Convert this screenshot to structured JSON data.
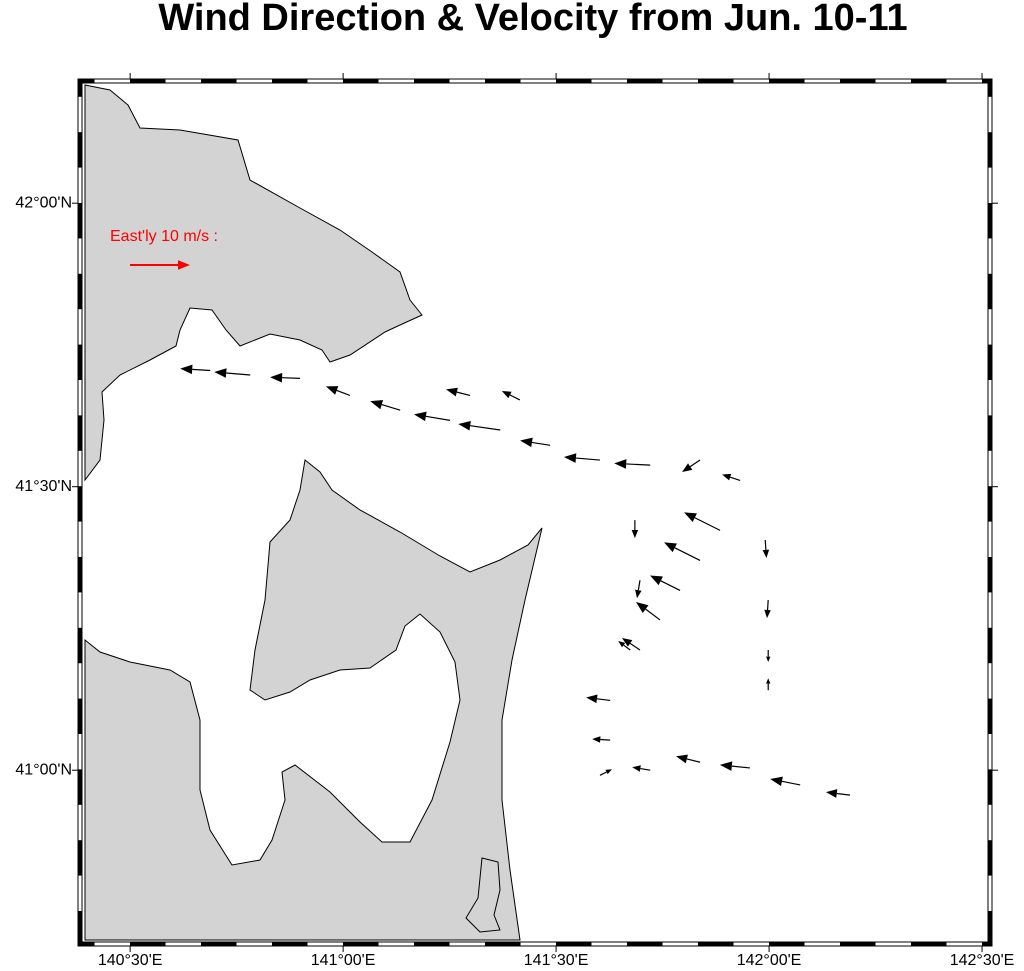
{
  "chart_data": {
    "type": "quiver",
    "title": "Wind Direction & Velocity from Jun. 10-11",
    "xlim": [
      140.387,
      142.514
    ],
    "ylim": [
      40.697,
      42.212
    ],
    "xticks": [
      {
        "value": 140.5,
        "label": "140°30'E"
      },
      {
        "value": 141,
        "label": "141°00'E"
      },
      {
        "value": 141.5,
        "label": "141°30'E"
      },
      {
        "value": 142,
        "label": "142°00'E"
      },
      {
        "value": 142.5,
        "label": "142°30'E"
      }
    ],
    "yticks": [
      {
        "value": 41,
        "label": "41°00'N"
      },
      {
        "value": 41.5,
        "label": "41°30'N"
      },
      {
        "value": 42,
        "label": "42°00'N"
      }
    ],
    "color": "#000000",
    "reference": {
      "label": "East'ly 10 m/s :",
      "u": 10,
      "v": 0,
      "color": "#ff0000"
    },
    "vectors": [
      {
        "lon": 140.688,
        "lat": 41.705,
        "u": -5,
        "v": 0.3
      },
      {
        "lon": 140.782,
        "lat": 41.697,
        "u": -6,
        "v": 0.5
      },
      {
        "lon": 140.899,
        "lat": 41.691,
        "u": -5,
        "v": 0.2
      },
      {
        "lon": 141.016,
        "lat": 41.661,
        "u": -4,
        "v": 1.5
      },
      {
        "lon": 141.134,
        "lat": 41.635,
        "u": -5,
        "v": 1.5
      },
      {
        "lon": 141.251,
        "lat": 41.617,
        "u": -6,
        "v": 1
      },
      {
        "lon": 141.369,
        "lat": 41.6,
        "u": -7,
        "v": 1
      },
      {
        "lon": 141.486,
        "lat": 41.573,
        "u": -5,
        "v": 0.8
      },
      {
        "lon": 141.603,
        "lat": 41.547,
        "u": -6,
        "v": 0.5
      },
      {
        "lon": 141.721,
        "lat": 41.538,
        "u": -6,
        "v": 0.3
      },
      {
        "lon": 141.838,
        "lat": 41.547,
        "u": -3,
        "v": -2
      },
      {
        "lon": 141.932,
        "lat": 41.511,
        "u": -3,
        "v": 1
      },
      {
        "lon": 141.298,
        "lat": 41.661,
        "u": -4,
        "v": 1
      },
      {
        "lon": 141.415,
        "lat": 41.653,
        "u": -3,
        "v": 1.5
      },
      {
        "lon": 141.685,
        "lat": 41.441,
        "u": 0,
        "v": -3
      },
      {
        "lon": 141.697,
        "lat": 41.335,
        "u": -0.5,
        "v": -3
      },
      {
        "lon": 141.674,
        "lat": 41.212,
        "u": -2,
        "v": 1.5
      },
      {
        "lon": 141.627,
        "lat": 41.123,
        "u": -4,
        "v": 0.5
      },
      {
        "lon": 141.627,
        "lat": 41.053,
        "u": -3,
        "v": 0.2
      },
      {
        "lon": 141.885,
        "lat": 41.423,
        "u": -6,
        "v": 3
      },
      {
        "lon": 141.838,
        "lat": 41.37,
        "u": -6,
        "v": 3
      },
      {
        "lon": 141.791,
        "lat": 41.317,
        "u": -5,
        "v": 2.5
      },
      {
        "lon": 141.744,
        "lat": 41.265,
        "u": -4,
        "v": 3
      },
      {
        "lon": 141.697,
        "lat": 41.212,
        "u": -3,
        "v": 2
      },
      {
        "lon": 141.991,
        "lat": 41.406,
        "u": 0.2,
        "v": -3
      },
      {
        "lon": 141.998,
        "lat": 41.3,
        "u": -0.2,
        "v": -3
      },
      {
        "lon": 141.998,
        "lat": 41.212,
        "u": 0,
        "v": -2
      },
      {
        "lon": 141.998,
        "lat": 41.141,
        "u": 0,
        "v": 2
      },
      {
        "lon": 141.603,
        "lat": 40.991,
        "u": 2,
        "v": 1
      },
      {
        "lon": 141.721,
        "lat": 41.0,
        "u": -3,
        "v": 0.5
      },
      {
        "lon": 141.838,
        "lat": 41.014,
        "u": -4,
        "v": 1
      },
      {
        "lon": 141.955,
        "lat": 41.004,
        "u": -5,
        "v": 0.5
      },
      {
        "lon": 142.073,
        "lat": 40.974,
        "u": -5,
        "v": 1
      },
      {
        "lon": 142.19,
        "lat": 40.956,
        "u": -4,
        "v": 0.5
      }
    ]
  }
}
